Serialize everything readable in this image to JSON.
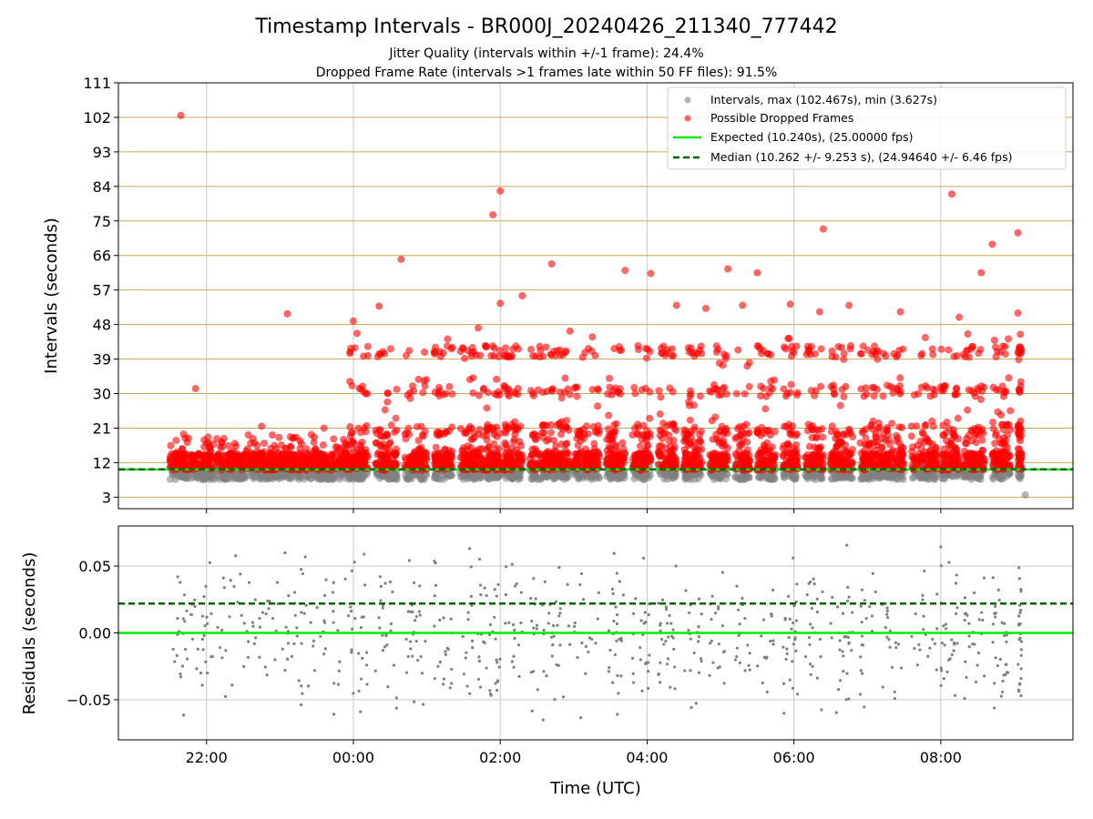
{
  "colors": {
    "intervals": "#808080",
    "dropped": "#ff0000",
    "expected": "#00ee00",
    "median": "#006400",
    "hline": "#c8a850",
    "grid": "#c8c8c8"
  },
  "chart_data": [
    {
      "type": "scatter",
      "title": "Timestamp Intervals - BR000J_20240426_211340_777442",
      "subtitle_1": "Jitter Quality (intervals within +/-1 frame): 24.4%",
      "subtitle_2": "Dropped Frame Rate (intervals >1 frames late within 50 FF files): 91.5%",
      "ylabel": "Intervals (seconds)",
      "xlabel": "",
      "x_ticks": [
        "22:00",
        "00:00",
        "02:00",
        "04:00",
        "06:00",
        "08:00"
      ],
      "x_tick_hours": [
        22,
        24,
        26,
        28,
        30,
        32
      ],
      "xlim_hours": [
        20.8,
        33.8
      ],
      "x_data_range_hours": [
        21.5,
        33.1
      ],
      "ylim": [
        0,
        111
      ],
      "y_ticks": [
        3,
        12,
        21,
        30,
        39,
        48,
        57,
        66,
        75,
        84,
        93,
        102,
        111
      ],
      "expected_interval": 10.24,
      "median_interval": 10.262,
      "legend_position": "top-right",
      "legend": {
        "intervals": "Intervals, max (102.467s), min (3.627s)",
        "dropped": "Possible Dropped Frames",
        "expected": "Expected (10.240s), (25.00000 fps)",
        "median": "Median (10.262 +/- 9.253 s), (24.94640 +/- 6.46 fps)"
      },
      "interval_range": {
        "max": 102.467,
        "min": 3.627
      },
      "dropped_outliers": [
        {
          "x": 21.65,
          "y": 102.5
        },
        {
          "x": 21.85,
          "y": 31.3
        },
        {
          "x": 22.75,
          "y": 21.5
        },
        {
          "x": 23.1,
          "y": 50.8
        },
        {
          "x": 23.6,
          "y": 21.0
        },
        {
          "x": 24.0,
          "y": 48.9
        },
        {
          "x": 24.05,
          "y": 45.7
        },
        {
          "x": 24.35,
          "y": 52.8
        },
        {
          "x": 24.65,
          "y": 65.0
        },
        {
          "x": 25.35,
          "y": 42.0
        },
        {
          "x": 25.7,
          "y": 47.1
        },
        {
          "x": 25.9,
          "y": 76.6
        },
        {
          "x": 26.0,
          "y": 82.8
        },
        {
          "x": 26.0,
          "y": 53.5
        },
        {
          "x": 26.3,
          "y": 55.5
        },
        {
          "x": 26.7,
          "y": 63.8
        },
        {
          "x": 26.95,
          "y": 46.3
        },
        {
          "x": 27.7,
          "y": 62.1
        },
        {
          "x": 28.05,
          "y": 61.3
        },
        {
          "x": 28.4,
          "y": 53.0
        },
        {
          "x": 28.8,
          "y": 52.2
        },
        {
          "x": 29.1,
          "y": 62.5
        },
        {
          "x": 29.3,
          "y": 53.0
        },
        {
          "x": 29.5,
          "y": 61.5
        },
        {
          "x": 29.95,
          "y": 53.3
        },
        {
          "x": 30.35,
          "y": 51.3
        },
        {
          "x": 30.4,
          "y": 72.9
        },
        {
          "x": 30.75,
          "y": 53.0
        },
        {
          "x": 31.45,
          "y": 51.3
        },
        {
          "x": 32.15,
          "y": 82.0
        },
        {
          "x": 32.25,
          "y": 49.9
        },
        {
          "x": 32.55,
          "y": 61.5
        },
        {
          "x": 32.7,
          "y": 68.9
        },
        {
          "x": 33.05,
          "y": 71.9
        },
        {
          "x": 33.05,
          "y": 51.0
        },
        {
          "x": 33.15,
          "y": 3.6
        }
      ],
      "cluster_bands_hours": [
        [
          21.5,
          21.75
        ],
        [
          21.75,
          22.1
        ],
        [
          22.1,
          22.5
        ],
        [
          22.5,
          23.0
        ],
        [
          23.0,
          23.4
        ],
        [
          23.4,
          23.95
        ],
        [
          23.95,
          24.2
        ],
        [
          24.3,
          24.6
        ],
        [
          24.7,
          25.0
        ],
        [
          25.1,
          25.35
        ],
        [
          25.45,
          25.75
        ],
        [
          25.75,
          26.0
        ],
        [
          26.05,
          26.3
        ],
        [
          26.4,
          26.7
        ],
        [
          26.7,
          26.95
        ],
        [
          27.0,
          27.35
        ],
        [
          27.45,
          27.7
        ],
        [
          27.8,
          28.05
        ],
        [
          28.15,
          28.4
        ],
        [
          28.5,
          28.75
        ],
        [
          28.85,
          29.1
        ],
        [
          29.2,
          29.4
        ],
        [
          29.5,
          29.75
        ],
        [
          29.85,
          30.05
        ],
        [
          30.15,
          30.4
        ],
        [
          30.5,
          30.8
        ],
        [
          30.9,
          31.15
        ],
        [
          31.15,
          31.5
        ],
        [
          31.6,
          31.95
        ],
        [
          32.0,
          32.25
        ],
        [
          32.3,
          32.6
        ],
        [
          32.7,
          32.95
        ],
        [
          33.05,
          33.1
        ]
      ]
    },
    {
      "type": "scatter",
      "title": "",
      "ylabel": "Residuals (seconds)",
      "xlabel": "Time (UTC)",
      "x_ticks": [
        "22:00",
        "00:00",
        "02:00",
        "04:00",
        "06:00",
        "08:00"
      ],
      "x_tick_hours": [
        22,
        24,
        26,
        28,
        30,
        32
      ],
      "xlim_hours": [
        20.8,
        33.8
      ],
      "ylim": [
        -0.08,
        0.08
      ],
      "y_ticks": [
        -0.05,
        0.0,
        0.05
      ],
      "y_tick_labels": [
        "−0.05",
        "0.00",
        "0.05"
      ],
      "expected_residual": 0.0,
      "median_residual": 0.022,
      "residual_spread": 0.08,
      "point_count": 750
    }
  ]
}
